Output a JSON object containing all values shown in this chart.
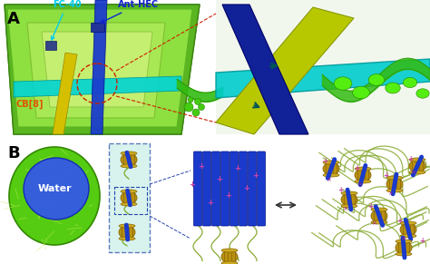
{
  "fig_width": 4.74,
  "fig_height": 2.91,
  "dpi": 100,
  "bg_color": "#ffffff",
  "panel_A_label": "A",
  "panel_B_label": "B",
  "label_fontsize": 13,
  "label_fontweight": "bold",
  "annotations": {
    "FC_40": "FC-40",
    "Ant_HEC": "Ant-HEC",
    "CB8": "CB[8]",
    "Water": "Water"
  },
  "colors": {
    "platform_dark": "#5ab520",
    "platform_light": "#8de040",
    "platform_inner": "#a8e855",
    "platform_side": "#3a8510",
    "cyan_channel": "#00d4d4",
    "blue_channel": "#1a3ccc",
    "yellow_channel": "#d4c000",
    "green_droplet": "#44cc11",
    "red_dashed": "#cc2200",
    "zoom_bg": "#f0f4e8",
    "zoom_cyan": "#00cccc",
    "zoom_blue": "#1a3acc",
    "zoom_yellow": "#c8be00",
    "zoom_green_channel": "#33bb11",
    "sphere_green": "#55cc11",
    "sphere_net": "#77dd33",
    "sphere_blue": "#3344ee",
    "dashed_box_bg": "#c8eee8",
    "cb8_gold": "#c8a010",
    "cb8_dark": "#a07808",
    "hec_green": "#77aa22",
    "rod_blue": "#1a3acc",
    "poly_green": "#88aa33",
    "plus_pink": "#cc44aa",
    "cross_pink": "#aa2288",
    "arrow_gray": "#444444",
    "FC40_cyan": "#00ccee",
    "AntHEC_blue": "#1122cc",
    "CB8_orange": "#dd5500"
  }
}
